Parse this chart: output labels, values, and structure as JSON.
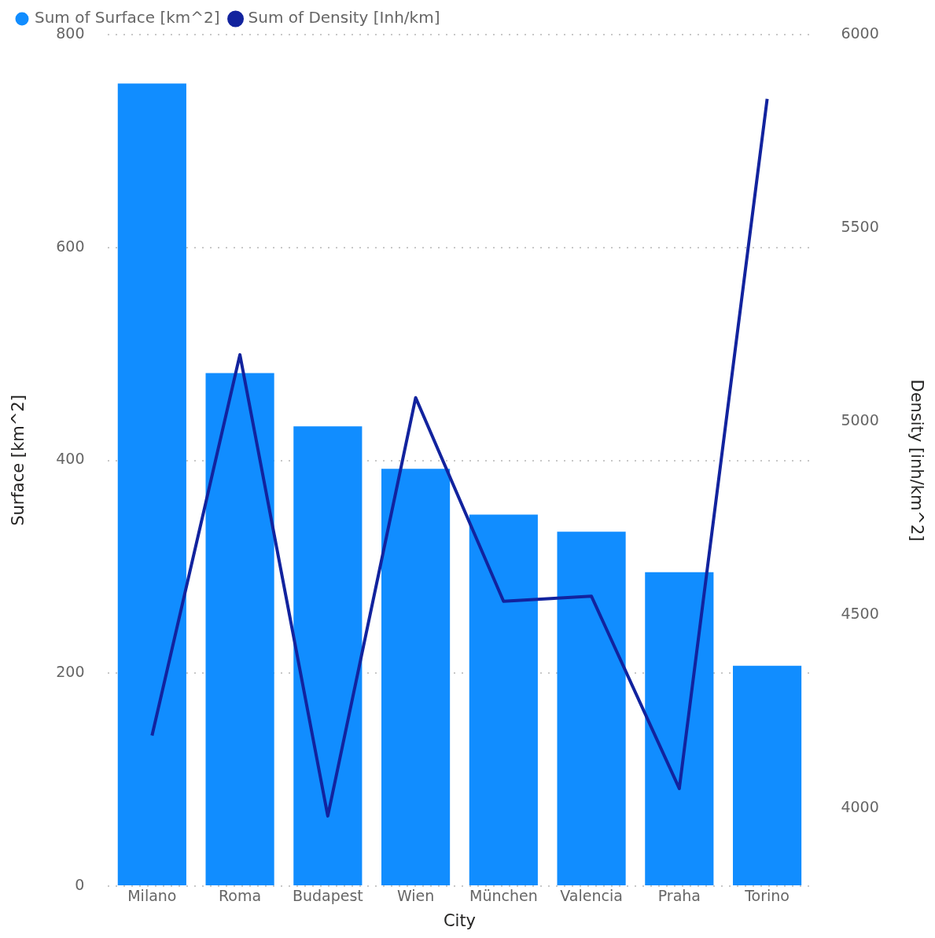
{
  "chart_data": {
    "type": "bar",
    "xlabel": "City",
    "ylabel": "Surface [km^2]",
    "y2label": "Density [inh/km^2]",
    "categories": [
      "Milano",
      "Roma",
      "Budapest",
      "Wien",
      "München",
      "Valencia",
      "Praha",
      "Torino"
    ],
    "series": [
      {
        "name": "Sum of Surface [km^2]",
        "color": "#118dff",
        "values": [
          754,
          482,
          432,
          392,
          349,
          333,
          295,
          207
        ]
      },
      {
        "name": "Sum of Density [Inh/km]",
        "type": "line",
        "axis": "y2",
        "color": "#12239e",
        "marker": "none",
        "values": [
          4189,
          5173,
          3981,
          5062,
          4536,
          4549,
          4052,
          5834
        ]
      }
    ],
    "ylim": [
      0,
      800
    ],
    "yticks": [
      0,
      200,
      400,
      600,
      800
    ],
    "y2lim": [
      3800,
      6000
    ],
    "y2ticks": [
      4000,
      4500,
      5000,
      5500,
      6000
    ],
    "grid": "y",
    "legend": "top left"
  }
}
